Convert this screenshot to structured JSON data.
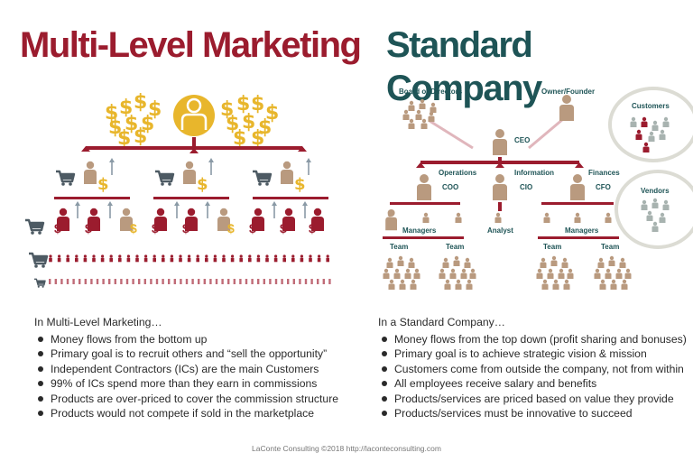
{
  "titles": {
    "left": "Multi-Level Marketing",
    "right": "Standard Company"
  },
  "colors": {
    "mlm_red": "#9b1c2e",
    "company_teal": "#1e5456",
    "tan_person": "#b99a7f",
    "gold": "#e8b62c",
    "cart_gray": "#4d5a63"
  },
  "company_chart": {
    "board": "Board of Directors",
    "owner": "Owner/Founder",
    "ceo": "CEO",
    "departments": [
      {
        "name": "Operations",
        "role": "COO"
      },
      {
        "name": "Information",
        "role": "CIO"
      },
      {
        "name": "Finances",
        "role": "CFO"
      }
    ],
    "managers": "Managers",
    "analyst": "Analyst",
    "team": "Team",
    "customers": "Customers",
    "vendors": "Vendors"
  },
  "mlm_text": {
    "intro": "In Multi-Level Marketing…",
    "bullets": [
      "Money flows from the bottom up",
      "Primary goal is to recruit others and “sell the opportunity”",
      "Independent Contractors (ICs) are the main Customers",
      "99% of ICs spend more than they earn in commissions",
      "Products are over-priced to cover the commission structure",
      "Products would not compete if sold in the marketplace"
    ]
  },
  "company_text": {
    "intro": "In a Standard Company…",
    "bullets": [
      "Money flows from the top down (profit sharing and bonuses)",
      "Primary goal is to achieve strategic vision & mission",
      "Customers come from outside the company, not from within",
      "All employees receive salary and benefits",
      "Products/services are priced based on value they provide",
      "Products/services must be innovative to succeed"
    ]
  },
  "footer": "LaConte Consulting ©2018   http://laconteconsulting.com"
}
